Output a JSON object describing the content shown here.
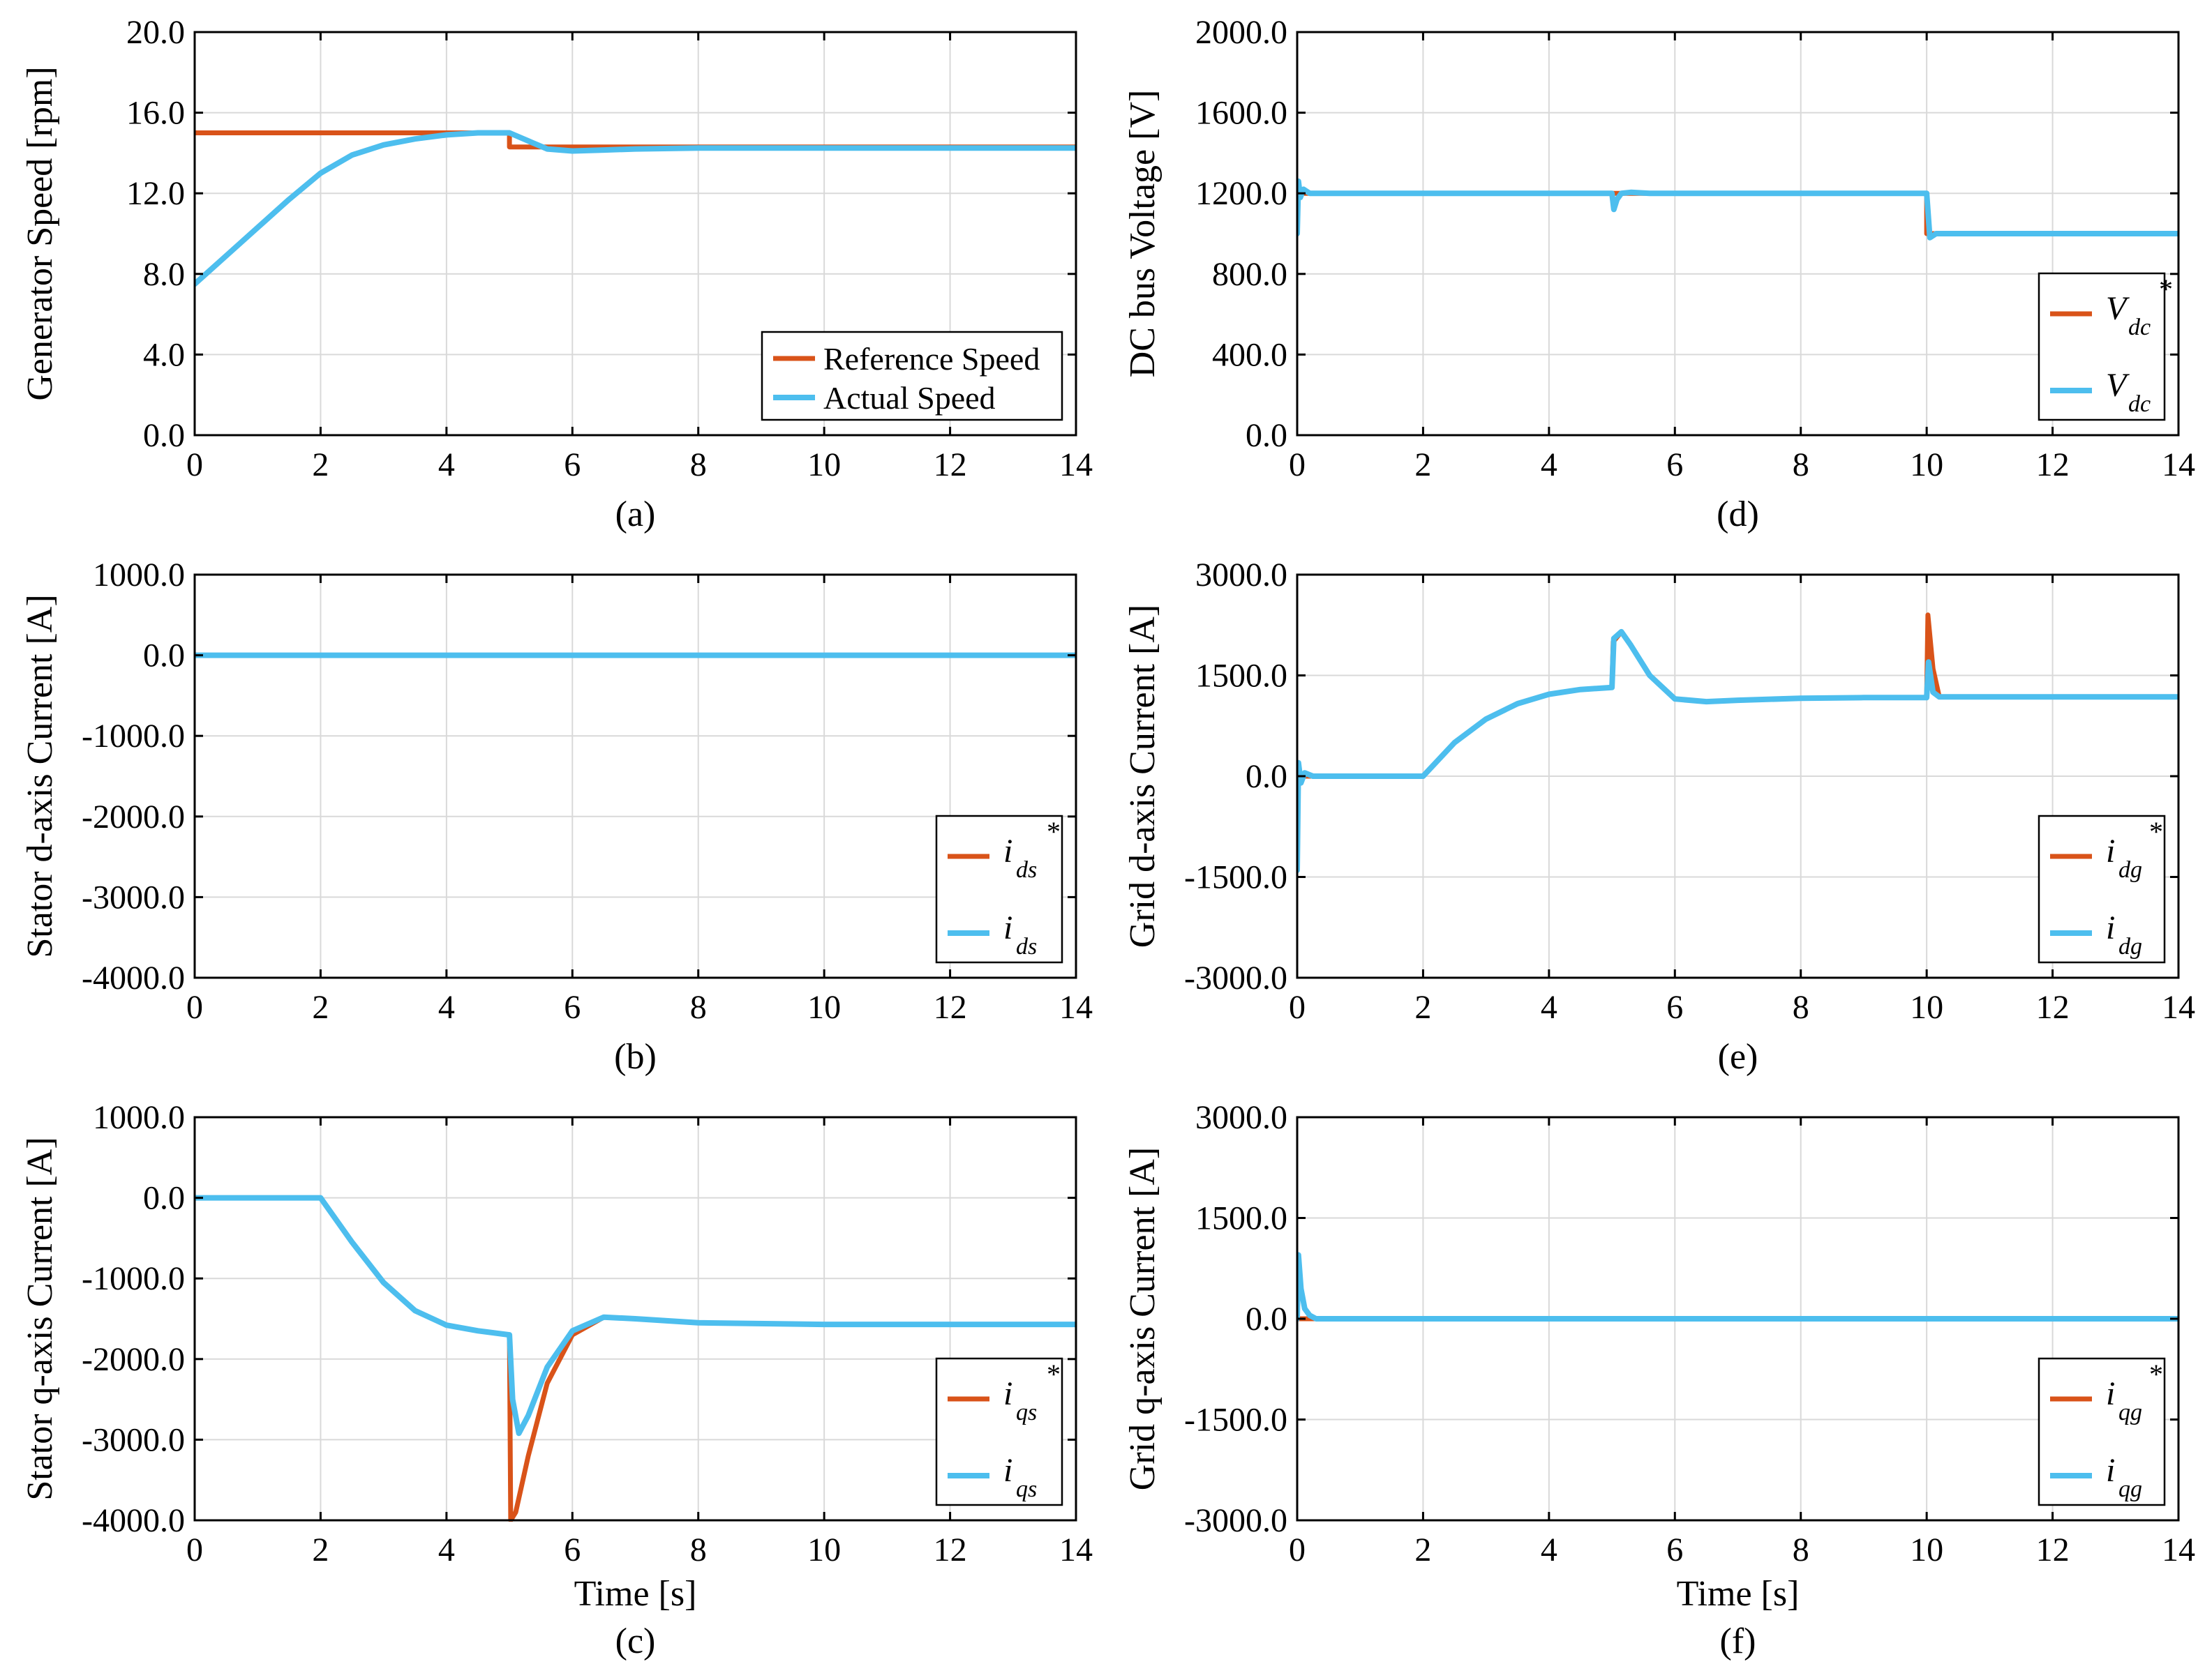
{
  "colors": {
    "reference": "#d95319",
    "actual": "#4dbeee",
    "grid": "#d9d9d9",
    "axis": "#000000"
  },
  "chart_data": [
    {
      "id": "a",
      "type": "line",
      "caption": "(a)",
      "xlabel": "",
      "ylabel": "Generator Speed [rpm]",
      "xlim": [
        0,
        14
      ],
      "ylim": [
        0,
        20
      ],
      "xticks": [
        0,
        2,
        4,
        6,
        8,
        10,
        12,
        14
      ],
      "yticks": [
        0,
        4,
        8,
        12,
        16,
        20
      ],
      "ytick_labels": [
        "0.0",
        "4.0",
        "8.0",
        "12.0",
        "16.0",
        "20.0"
      ],
      "grid": true,
      "legend_position": "bottom-right",
      "series": [
        {
          "name": "Reference Speed",
          "color_key": "reference",
          "x": [
            0,
            5,
            5,
            14
          ],
          "y": [
            15,
            15,
            14.3,
            14.3
          ]
        },
        {
          "name": "Actual Speed",
          "color_key": "actual",
          "x": [
            0,
            0.5,
            1,
            1.5,
            2,
            2.5,
            3,
            3.5,
            4,
            4.5,
            5,
            5.3,
            5.6,
            6,
            6.5,
            7,
            8,
            10,
            12,
            14
          ],
          "y": [
            7.5,
            8.9,
            10.3,
            11.7,
            13.0,
            13.9,
            14.4,
            14.7,
            14.9,
            15.0,
            15.0,
            14.6,
            14.2,
            14.1,
            14.15,
            14.2,
            14.25,
            14.25,
            14.25,
            14.25
          ]
        }
      ]
    },
    {
      "id": "b",
      "type": "line",
      "caption": "(b)",
      "xlabel": "",
      "ylabel": "Stator d-axis Current [A]",
      "xlim": [
        0,
        14
      ],
      "ylim": [
        -4000,
        1000
      ],
      "xticks": [
        0,
        2,
        4,
        6,
        8,
        10,
        12,
        14
      ],
      "yticks": [
        -4000,
        -3000,
        -2000,
        -1000,
        0,
        1000
      ],
      "ytick_labels": [
        "-4000.0",
        "-3000.0",
        "-2000.0",
        "-1000.0",
        "0.0",
        "1000.0"
      ],
      "grid": true,
      "legend_position": "bottom-right",
      "series": [
        {
          "name": "i_ds*",
          "symbol": "i",
          "sub": "ds",
          "star": true,
          "color_key": "reference",
          "x": [
            0,
            14
          ],
          "y": [
            0,
            0
          ]
        },
        {
          "name": "i_ds",
          "symbol": "i",
          "sub": "ds",
          "star": false,
          "color_key": "actual",
          "x": [
            0,
            14
          ],
          "y": [
            0,
            0
          ]
        }
      ]
    },
    {
      "id": "c",
      "type": "line",
      "caption": "(c)",
      "xlabel": "Time [s]",
      "ylabel": "Stator q-axis Current [A]",
      "xlim": [
        0,
        14
      ],
      "ylim": [
        -4000,
        1000
      ],
      "xticks": [
        0,
        2,
        4,
        6,
        8,
        10,
        12,
        14
      ],
      "yticks": [
        -4000,
        -3000,
        -2000,
        -1000,
        0,
        1000
      ],
      "ytick_labels": [
        "-4000.0",
        "-3000.0",
        "-2000.0",
        "-1000.0",
        "0.0",
        "1000.0"
      ],
      "grid": true,
      "legend_position": "bottom-right",
      "series": [
        {
          "name": "i_qs*",
          "symbol": "i",
          "sub": "qs",
          "star": true,
          "color_key": "reference",
          "x": [
            0,
            2,
            2.5,
            3,
            3.5,
            4,
            4.5,
            5,
            5.02,
            5.1,
            5.3,
            5.6,
            6,
            6.5,
            7,
            8,
            10,
            12,
            14
          ],
          "y": [
            0,
            0,
            -550,
            -1050,
            -1400,
            -1580,
            -1650,
            -1700,
            -4000,
            -3900,
            -3200,
            -2300,
            -1700,
            -1480,
            -1500,
            -1550,
            -1570,
            -1570,
            -1570
          ]
        },
        {
          "name": "i_qs",
          "symbol": "i",
          "sub": "qs",
          "star": false,
          "color_key": "actual",
          "x": [
            0,
            2,
            2.5,
            3,
            3.5,
            4,
            4.5,
            5,
            5.05,
            5.15,
            5.3,
            5.6,
            6,
            6.5,
            7,
            8,
            10,
            12,
            14
          ],
          "y": [
            0,
            0,
            -550,
            -1050,
            -1400,
            -1580,
            -1650,
            -1700,
            -2500,
            -2920,
            -2700,
            -2100,
            -1650,
            -1480,
            -1500,
            -1550,
            -1570,
            -1570,
            -1570
          ]
        }
      ]
    },
    {
      "id": "d",
      "type": "line",
      "caption": "(d)",
      "xlabel": "",
      "ylabel": "DC bus Voltage [V]",
      "xlim": [
        0,
        14
      ],
      "ylim": [
        0,
        2000
      ],
      "xticks": [
        0,
        2,
        4,
        6,
        8,
        10,
        12,
        14
      ],
      "yticks": [
        0,
        400,
        800,
        1200,
        1600,
        2000
      ],
      "ytick_labels": [
        "0.0",
        "400.0",
        "800.0",
        "1200.0",
        "1600.0",
        "2000.0"
      ],
      "grid": true,
      "legend_position": "bottom-right",
      "series": [
        {
          "name": "V_dc*",
          "symbol": "V",
          "sub": "dc",
          "star": true,
          "color_key": "reference",
          "x": [
            0,
            10,
            10,
            14
          ],
          "y": [
            1200,
            1200,
            1000,
            1000
          ]
        },
        {
          "name": "V_dc",
          "symbol": "V",
          "sub": "dc",
          "star": false,
          "color_key": "actual",
          "x": [
            0,
            0.02,
            0.05,
            0.1,
            0.2,
            5,
            5.03,
            5.08,
            5.15,
            5.3,
            5.6,
            10,
            10.05,
            10.15,
            10.3,
            14
          ],
          "y": [
            1000,
            1260,
            1180,
            1220,
            1200,
            1200,
            1120,
            1170,
            1200,
            1205,
            1200,
            1200,
            980,
            1000,
            1000,
            1000
          ]
        }
      ]
    },
    {
      "id": "e",
      "type": "line",
      "caption": "(e)",
      "xlabel": "",
      "ylabel": "Grid d-axis Current [A]",
      "xlim": [
        0,
        14
      ],
      "ylim": [
        -3000,
        3000
      ],
      "xticks": [
        0,
        2,
        4,
        6,
        8,
        10,
        12,
        14
      ],
      "yticks": [
        -3000,
        -1500,
        0,
        1500,
        3000
      ],
      "ytick_labels": [
        "-3000.0",
        "-1500.0",
        "0.0",
        "1500.0",
        "3000.0"
      ],
      "grid": true,
      "legend_position": "bottom-right",
      "series": [
        {
          "name": "i_dg*",
          "symbol": "i",
          "sub": "dg",
          "star": true,
          "color_key": "reference",
          "x": [
            0,
            2,
            2.5,
            3,
            3.5,
            4,
            4.5,
            5,
            5.02,
            5.15,
            5.3,
            5.6,
            6,
            6.5,
            7,
            8,
            9,
            10,
            10.02,
            10.1,
            10.2,
            14
          ],
          "y": [
            0,
            0,
            500,
            850,
            1080,
            1220,
            1290,
            1320,
            2000,
            2150,
            1950,
            1500,
            1150,
            1110,
            1130,
            1160,
            1170,
            1170,
            2400,
            1600,
            1180,
            1180
          ]
        },
        {
          "name": "i_dg",
          "symbol": "i",
          "sub": "dg",
          "star": false,
          "color_key": "actual",
          "x": [
            0,
            0.02,
            0.06,
            0.12,
            0.25,
            2,
            2.5,
            3,
            3.5,
            4,
            4.5,
            5,
            5.03,
            5.15,
            5.3,
            5.6,
            6,
            6.5,
            7,
            8,
            9,
            10,
            10.03,
            10.1,
            10.2,
            14
          ],
          "y": [
            -1400,
            200,
            -100,
            50,
            0,
            0,
            500,
            850,
            1080,
            1220,
            1290,
            1320,
            2050,
            2150,
            1950,
            1500,
            1150,
            1110,
            1130,
            1160,
            1170,
            1170,
            1700,
            1250,
            1180,
            1180
          ]
        }
      ]
    },
    {
      "id": "f",
      "type": "line",
      "caption": "(f)",
      "xlabel": "Time [s]",
      "ylabel": "Grid q-axis Current [A]",
      "xlim": [
        0,
        14
      ],
      "ylim": [
        -3000,
        3000
      ],
      "xticks": [
        0,
        2,
        4,
        6,
        8,
        10,
        12,
        14
      ],
      "yticks": [
        -3000,
        -1500,
        0,
        1500,
        3000
      ],
      "ytick_labels": [
        "-3000.0",
        "-1500.0",
        "0.0",
        "1500.0",
        "3000.0"
      ],
      "grid": true,
      "legend_position": "bottom-right",
      "series": [
        {
          "name": "i_qg*",
          "symbol": "i",
          "sub": "qg",
          "star": true,
          "color_key": "reference",
          "x": [
            0,
            14
          ],
          "y": [
            0,
            0
          ]
        },
        {
          "name": "i_qg",
          "symbol": "i",
          "sub": "qg",
          "star": false,
          "color_key": "actual",
          "x": [
            0,
            0.02,
            0.06,
            0.12,
            0.2,
            0.3,
            14
          ],
          "y": [
            0,
            950,
            450,
            150,
            50,
            0,
            0
          ]
        }
      ]
    }
  ]
}
